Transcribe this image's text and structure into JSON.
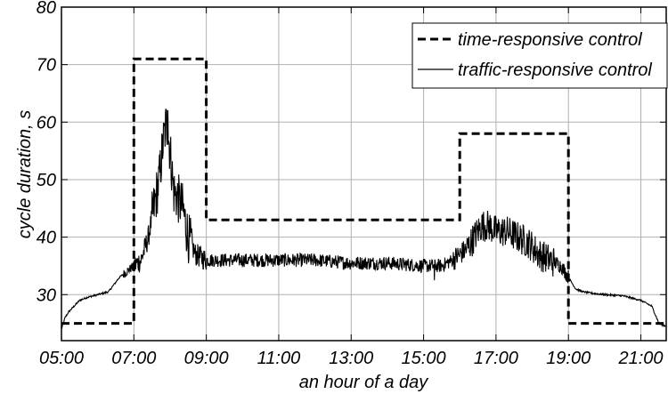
{
  "chart_data": {
    "type": "line",
    "title": "",
    "xlabel": "an hour of a day",
    "ylabel": "cycle duration, s",
    "xlim": [
      5.0,
      21.7
    ],
    "ylim": [
      22,
      80
    ],
    "xticks": [
      5,
      7,
      9,
      11,
      13,
      15,
      17,
      19,
      21
    ],
    "xtick_labels": [
      "05:00",
      "07:00",
      "09:00",
      "11:00",
      "13:00",
      "15:00",
      "17:00",
      "19:00",
      "21:00"
    ],
    "yticks": [
      30,
      40,
      50,
      60,
      70,
      80
    ],
    "ytick_labels": [
      "30",
      "40",
      "50",
      "60",
      "70",
      "80"
    ],
    "grid": true,
    "legend_position": "top-right",
    "series": [
      {
        "name": "time-responsive control",
        "style": "dashed",
        "color": "#000000",
        "x": [
          5.0,
          7.0,
          7.0,
          9.0,
          9.0,
          16.0,
          16.0,
          19.0,
          19.0,
          21.7
        ],
        "y": [
          25,
          25,
          71,
          71,
          43,
          43,
          58,
          58,
          25,
          25
        ]
      },
      {
        "name": "traffic-responsive control",
        "style": "solid",
        "color": "#000000",
        "x": [
          5.0,
          5.1,
          5.2,
          5.35,
          5.5,
          5.7,
          6.0,
          6.3,
          6.6,
          6.8,
          7.0,
          7.2,
          7.4,
          7.55,
          7.7,
          7.8,
          7.9,
          8.0,
          8.1,
          8.2,
          8.35,
          8.5,
          8.7,
          9.0,
          10.0,
          11.0,
          12.0,
          13.0,
          14.0,
          15.0,
          15.5,
          15.8,
          16.0,
          16.2,
          16.4,
          16.6,
          16.8,
          17.0,
          17.3,
          17.6,
          17.9,
          18.2,
          18.5,
          18.8,
          19.0,
          19.2,
          19.4,
          19.7,
          20.0,
          20.5,
          21.0,
          21.3,
          21.5,
          21.7
        ],
        "y": [
          24,
          26,
          27,
          28,
          29,
          29.5,
          30,
          30.5,
          33,
          34,
          35,
          36,
          40,
          45,
          50,
          56,
          60,
          55,
          48,
          47,
          45,
          40,
          37,
          36,
          36,
          36,
          36,
          35.5,
          35.5,
          35,
          35,
          36,
          37,
          38,
          40,
          42,
          42,
          41,
          41,
          40,
          39,
          37,
          36,
          35,
          33,
          31,
          30.5,
          30.2,
          30,
          29.8,
          29,
          28,
          25,
          24.5
        ]
      }
    ]
  }
}
